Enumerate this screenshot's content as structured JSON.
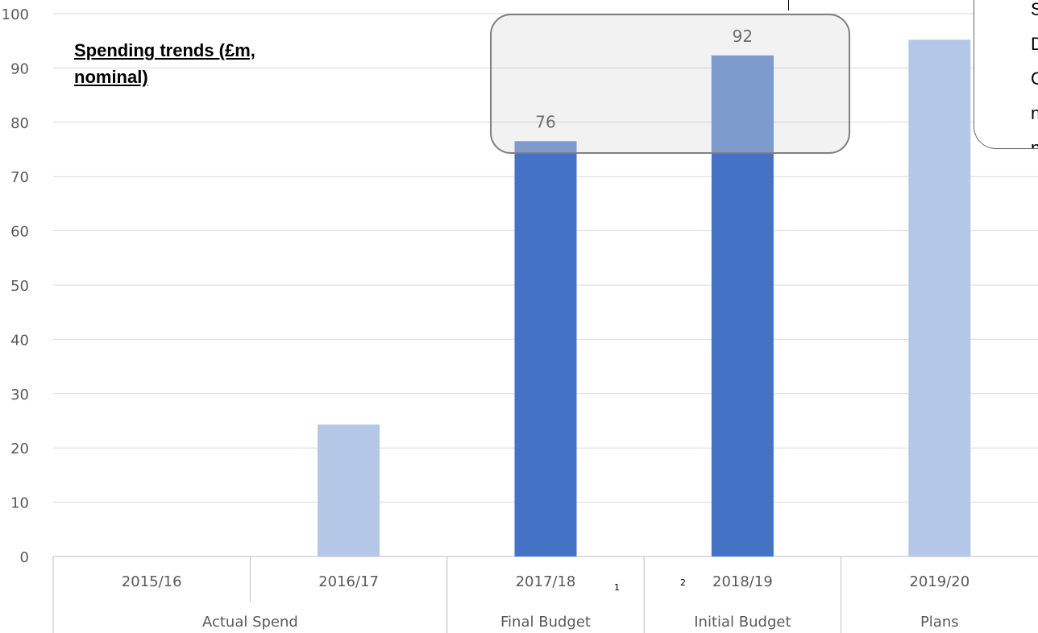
{
  "chart_data": {
    "type": "bar",
    "title": "Spending trends (£m, nominal)",
    "ylim": [
      0,
      100
    ],
    "ytick_step": 10,
    "grid": true,
    "categories": [
      "2015/16",
      "2016/17",
      "2017/18",
      "2018/19",
      "2019/20"
    ],
    "groups": [
      {
        "label": "Actual Spend",
        "categories": [
          "2015/16",
          "2016/17"
        ]
      },
      {
        "label": "Final Budget",
        "categories": [
          "2017/18"
        ]
      },
      {
        "label": "Initial Budget",
        "categories": [
          "2018/19"
        ]
      },
      {
        "label": "Plans",
        "categories": [
          "2019/20"
        ]
      }
    ],
    "values": [
      0,
      24.3,
      76.5,
      92.3,
      95.2
    ],
    "data_labels": [
      "",
      "",
      "76",
      "92",
      ""
    ],
    "bar_colors": [
      "#b4c7e7",
      "#b4c7e7",
      "#4472c4",
      "#4472c4",
      "#b4c7e7"
    ],
    "highlight_color": "#6f93d3",
    "footnote_markers": [
      "1",
      "2"
    ]
  },
  "note_lines": [
    "S",
    "D",
    "C",
    "n",
    "n"
  ]
}
